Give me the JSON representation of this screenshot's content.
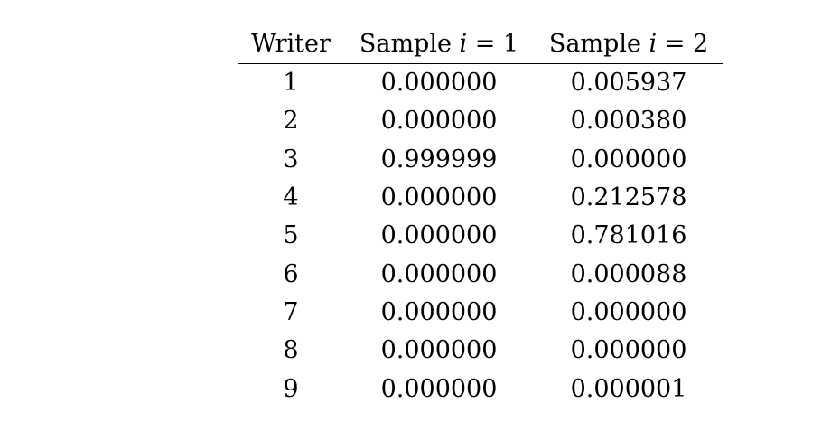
{
  "table": {
    "headers": {
      "writer": "Writer",
      "sample1_prefix": "Sample",
      "sample1_var": "i",
      "sample1_suffix": "= 1",
      "sample2_prefix": "Sample",
      "sample2_var": "i",
      "sample2_suffix": "= 2"
    },
    "rows": [
      {
        "writer": "1",
        "s1": "0.000000",
        "s2": "0.005937"
      },
      {
        "writer": "2",
        "s1": "0.000000",
        "s2": "0.000380"
      },
      {
        "writer": "3",
        "s1": "0.999999",
        "s2": "0.000000"
      },
      {
        "writer": "4",
        "s1": "0.000000",
        "s2": "0.212578"
      },
      {
        "writer": "5",
        "s1": "0.000000",
        "s2": "0.781016"
      },
      {
        "writer": "6",
        "s1": "0.000000",
        "s2": "0.000088"
      },
      {
        "writer": "7",
        "s1": "0.000000",
        "s2": "0.000000"
      },
      {
        "writer": "8",
        "s1": "0.000000",
        "s2": "0.000000"
      },
      {
        "writer": "9",
        "s1": "0.000000",
        "s2": "0.000001"
      }
    ]
  }
}
